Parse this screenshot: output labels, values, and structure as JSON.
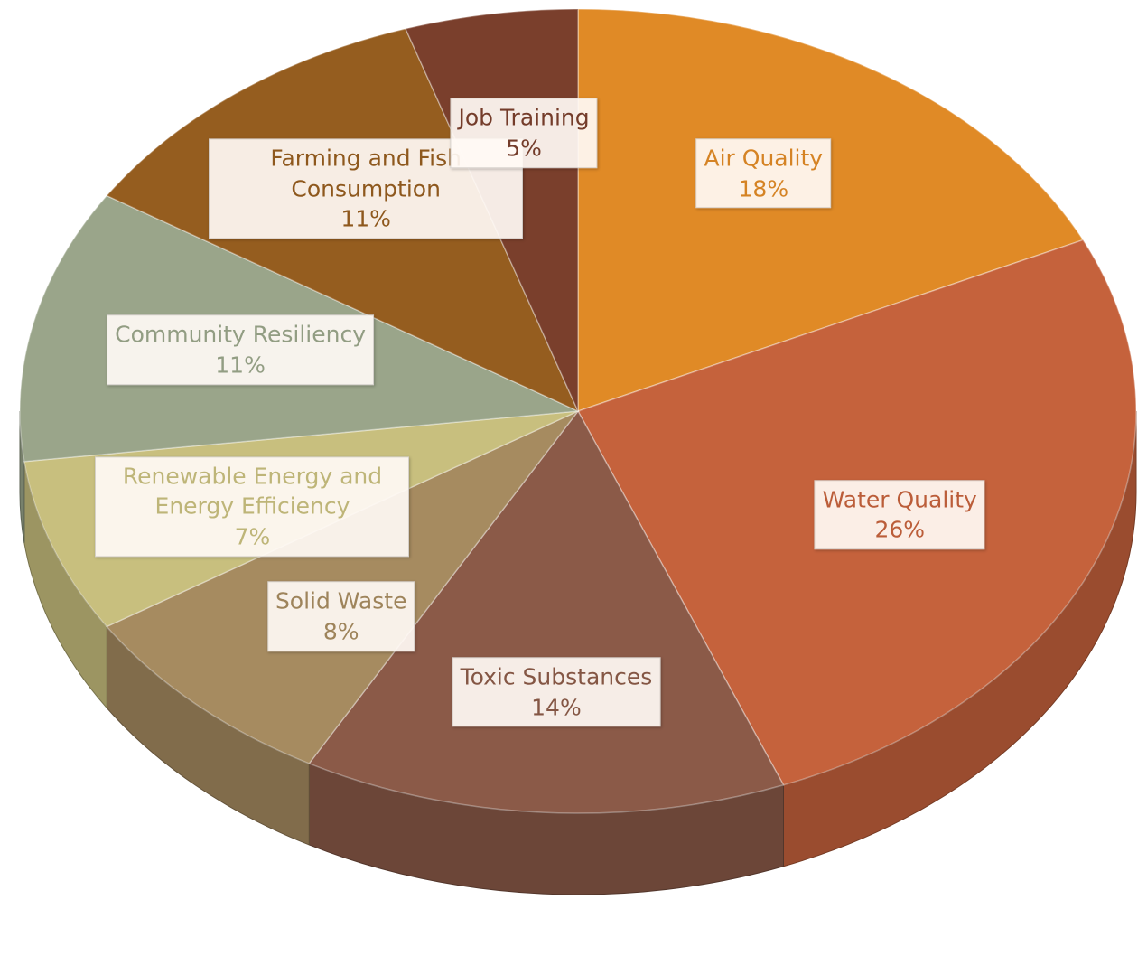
{
  "chart_data": {
    "type": "pie",
    "categories": [
      "Air Quality",
      "Water Quality",
      "Toxic Substances",
      "Solid Waste",
      "Renewable Energy and Energy Efficiency",
      "Community Resiliency",
      "Farming and Fish Consumption",
      "Job Training"
    ],
    "values": [
      18,
      26,
      14,
      8,
      7,
      11,
      11,
      5
    ],
    "value_labels": [
      "18%",
      "26%",
      "14%",
      "8%",
      "7%",
      "11%",
      "11%",
      "5%"
    ],
    "colors": [
      "#e08a26",
      "#c5623c",
      "#8b5a48",
      "#a68b60",
      "#c8bf7e",
      "#9aa58a",
      "#955d1f",
      "#7a3f2c"
    ]
  }
}
